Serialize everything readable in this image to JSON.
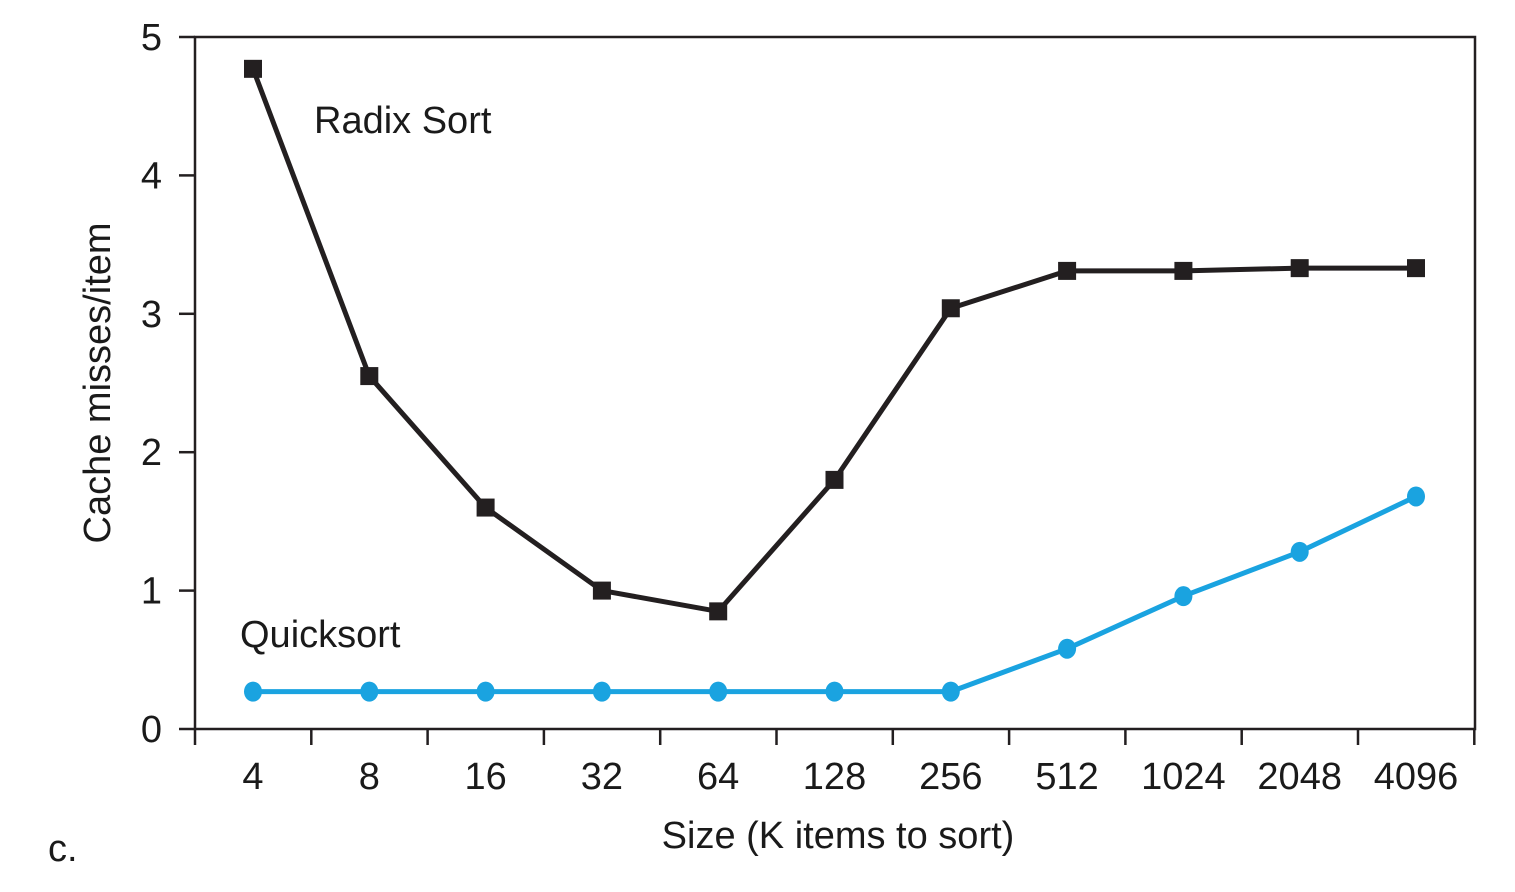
{
  "panel_label": "c.",
  "chart_data": {
    "type": "line",
    "title": "",
    "xlabel": "Size (K items to sort)",
    "ylabel": "Cache misses/item",
    "categories": [
      "4",
      "8",
      "16",
      "32",
      "64",
      "128",
      "256",
      "512",
      "1024",
      "2048",
      "4096"
    ],
    "y_ticks": [
      "0",
      "1",
      "2",
      "3",
      "4",
      "5"
    ],
    "ylim": [
      0,
      5
    ],
    "grid": false,
    "legend": "inline labels",
    "series": [
      {
        "name": "Radix Sort",
        "color": "#231f20",
        "marker": "square",
        "values": [
          4.77,
          2.55,
          1.6,
          1.0,
          0.85,
          1.8,
          3.04,
          3.31,
          3.31,
          3.33,
          3.33
        ]
      },
      {
        "name": "Quicksort",
        "color": "#1aa3e0",
        "marker": "circle",
        "values": [
          0.27,
          0.27,
          0.27,
          0.27,
          0.27,
          0.27,
          0.27,
          0.58,
          0.96,
          1.28,
          1.68
        ]
      }
    ]
  }
}
